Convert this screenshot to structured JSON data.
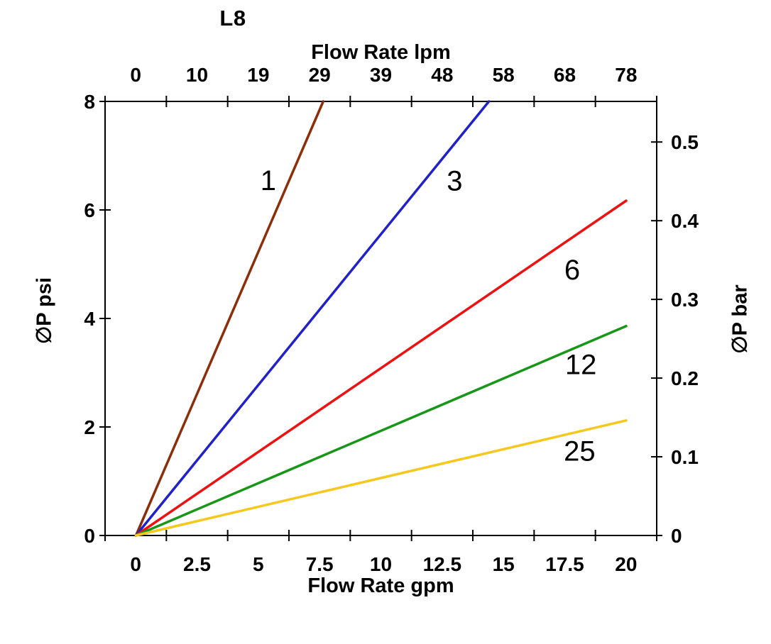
{
  "title": "L8",
  "chart_data": {
    "type": "line",
    "title": "L8",
    "xlabel_top": "Flow Rate lpm",
    "xlabel_bottom": "Flow Rate gpm",
    "ylabel_left": "∅P psi",
    "ylabel_right": "∅P bar",
    "xlim_gpm": [
      0,
      20
    ],
    "ylim_psi": [
      0,
      8
    ],
    "x_ticks_top_lpm": [
      "0",
      "10",
      "19",
      "29",
      "39",
      "48",
      "58",
      "68",
      "78"
    ],
    "x_ticks_bottom_gpm": [
      "0",
      "2.5",
      "5",
      "7.5",
      "10",
      "12.5",
      "15",
      "17.5",
      "20"
    ],
    "y_ticks_left_psi": [
      "8",
      "6",
      "4",
      "2",
      "0"
    ],
    "y_ticks_right_bar": [
      "0.5",
      "0.4",
      "0.3",
      "0.2",
      "0.1",
      "0"
    ],
    "grid": false,
    "legend": "inline labels next to each line",
    "series": [
      {
        "name": "1",
        "color": "#8C2E0A",
        "points_gpm_psi": [
          [
            0,
            0
          ],
          [
            7.64,
            8.0
          ]
        ],
        "label_pos_gpm_psi": [
          5.4,
          6.55
        ]
      },
      {
        "name": "3",
        "color": "#2121CB",
        "points_gpm_psi": [
          [
            0,
            0
          ],
          [
            14.4,
            8.0
          ]
        ],
        "label_pos_gpm_psi": [
          13.0,
          6.54
        ]
      },
      {
        "name": "6",
        "color": "#EE1111",
        "points_gpm_psi": [
          [
            0,
            0
          ],
          [
            20.0,
            6.17
          ]
        ],
        "label_pos_gpm_psi": [
          17.8,
          4.9
        ]
      },
      {
        "name": "12",
        "color": "#179617",
        "points_gpm_psi": [
          [
            0,
            0
          ],
          [
            20.0,
            3.86
          ]
        ],
        "label_pos_gpm_psi": [
          18.15,
          3.16
        ]
      },
      {
        "name": "25",
        "color": "#F6C81E",
        "points_gpm_psi": [
          [
            0,
            0
          ],
          [
            20.0,
            2.12
          ]
        ],
        "label_pos_gpm_psi": [
          18.1,
          1.56
        ]
      }
    ]
  }
}
